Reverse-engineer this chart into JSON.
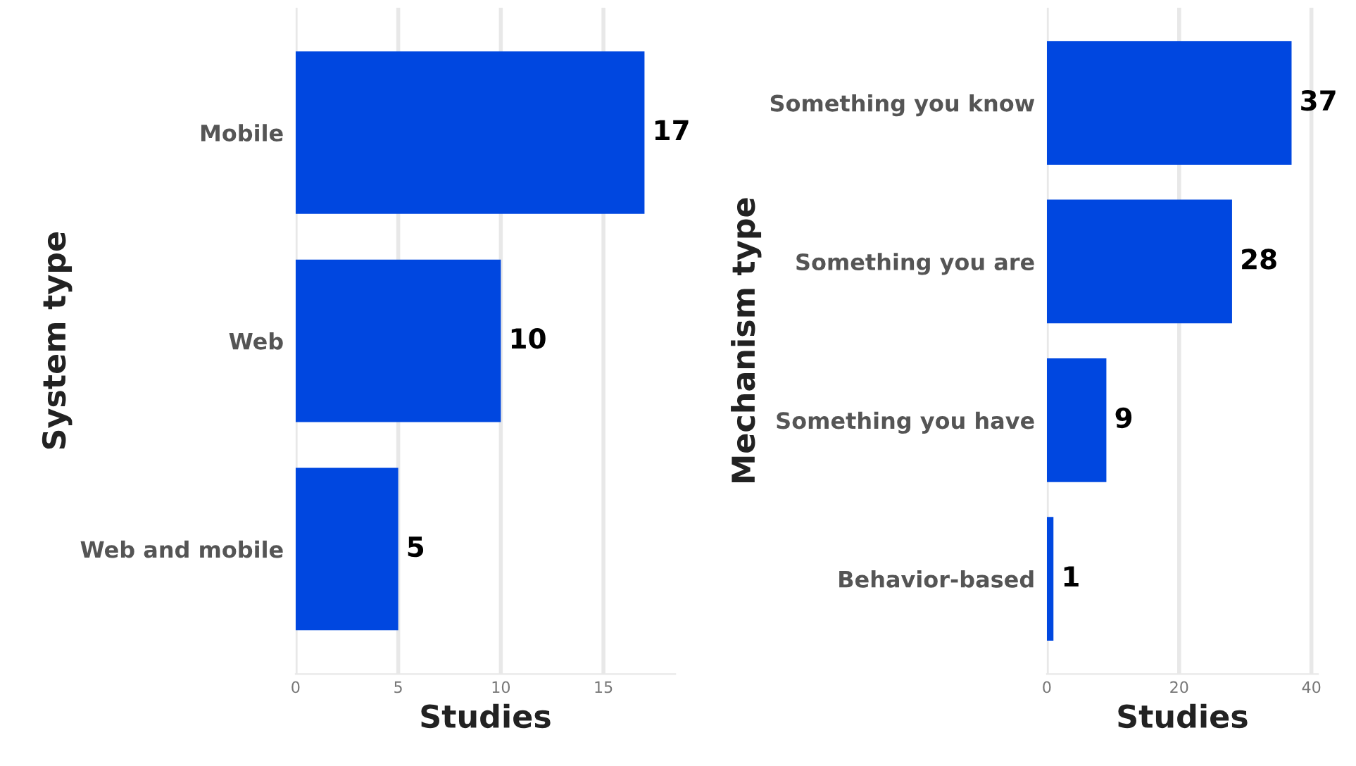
{
  "chart_data": [
    {
      "type": "bar",
      "orientation": "horizontal",
      "xlabel": "Studies",
      "ylabel": "System type",
      "categories": [
        "Mobile",
        "Web",
        "Web and mobile"
      ],
      "values": [
        17,
        10,
        5
      ],
      "color": "#0047e0",
      "xlim": [
        0,
        18.5
      ],
      "xticks": [
        0,
        5,
        10,
        15
      ],
      "grid": "x",
      "data_labels": true,
      "legend": false
    },
    {
      "type": "bar",
      "orientation": "horizontal",
      "xlabel": "Studies",
      "ylabel": "Mechanism type",
      "categories": [
        "Something you know",
        "Something you are",
        "Something you have",
        "Behavior-based"
      ],
      "values": [
        37,
        28,
        9,
        1
      ],
      "color": "#0047e0",
      "xlim": [
        0,
        41
      ],
      "xticks": [
        0,
        20,
        40
      ],
      "grid": "x",
      "data_labels": true,
      "legend": false
    }
  ]
}
